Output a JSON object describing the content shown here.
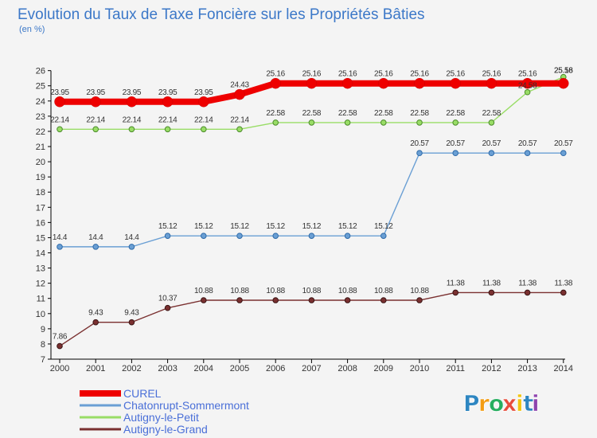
{
  "chart_data": {
    "type": "line",
    "title": "Evolution du Taux de Taxe Foncière sur les Propriétés Bâties",
    "subtitle": "(en %)",
    "xlabel": "",
    "ylabel": "(en %)",
    "ylim": [
      7,
      26
    ],
    "yticks": [
      "7",
      "8",
      "9",
      "10",
      "11",
      "12",
      "13",
      "14",
      "15",
      "16",
      "17",
      "18",
      "19",
      "20",
      "21",
      "22",
      "23",
      "24",
      "25",
      "26"
    ],
    "x": [
      "2000",
      "2001",
      "2002",
      "2003",
      "2004",
      "2005",
      "2006",
      "2007",
      "2008",
      "2009",
      "2010",
      "2011",
      "2012",
      "2013",
      "2014"
    ],
    "grid": false,
    "legend_position": "bottom-left",
    "series": [
      {
        "name": "CUREL",
        "color": "#ee0000",
        "values": [
          23.95,
          23.95,
          23.95,
          23.95,
          23.95,
          24.43,
          25.16,
          25.16,
          25.16,
          25.16,
          25.16,
          25.16,
          25.16,
          25.16,
          25.16
        ],
        "labels": [
          "23.95",
          "23.95",
          "23.95",
          "23.95",
          "23.95",
          "24.43",
          "25.16",
          "25.16",
          "25.16",
          "25.16",
          "25.16",
          "25.16",
          "25.16",
          "25.16",
          "25.16"
        ]
      },
      {
        "name": "Chatonrupt-Sommermont",
        "color": "#6a9fd4",
        "values": [
          14.4,
          14.4,
          14.4,
          15.12,
          15.12,
          15.12,
          15.12,
          15.12,
          15.12,
          15.12,
          20.57,
          20.57,
          20.57,
          20.57,
          20.57
        ],
        "labels": [
          "14.4",
          "14.4",
          "14.4",
          "15.12",
          "15.12",
          "15.12",
          "15.12",
          "15.12",
          "15.12",
          "15.12",
          "20.57",
          "20.57",
          "20.57",
          "20.57",
          "20.57"
        ]
      },
      {
        "name": "Autigny-le-Petit",
        "color": "#99dd66",
        "values": [
          22.14,
          22.14,
          22.14,
          22.14,
          22.14,
          22.14,
          22.58,
          22.58,
          22.58,
          22.58,
          22.58,
          22.58,
          22.58,
          24.58,
          25.58
        ],
        "labels": [
          "22.14",
          "22.14",
          "22.14",
          "22.14",
          "22.14",
          "22.14",
          "22.58",
          "22.58",
          "22.58",
          "22.58",
          "22.58",
          "22.58",
          "22.58",
          "24.58",
          "25.58"
        ]
      },
      {
        "name": "Autigny-le-Grand",
        "color": "#7a3030",
        "values": [
          7.86,
          9.43,
          9.43,
          10.37,
          10.88,
          10.88,
          10.88,
          10.88,
          10.88,
          10.88,
          10.88,
          11.38,
          11.38,
          11.38,
          11.38
        ],
        "labels": [
          "7.86",
          "9.43",
          "9.43",
          "10.37",
          "10.88",
          "10.88",
          "10.88",
          "10.88",
          "10.88",
          "10.88",
          "10.88",
          "11.38",
          "11.38",
          "11.38",
          "11.38"
        ]
      }
    ]
  },
  "logo": {
    "letters": [
      "P",
      "r",
      "o",
      "x",
      "i",
      "t",
      "i"
    ],
    "colors": [
      "#2e86c1",
      "#f39c12",
      "#27ae60",
      "#e74c3c",
      "#f1c40f",
      "#2e86c1",
      "#8e44ad"
    ]
  }
}
